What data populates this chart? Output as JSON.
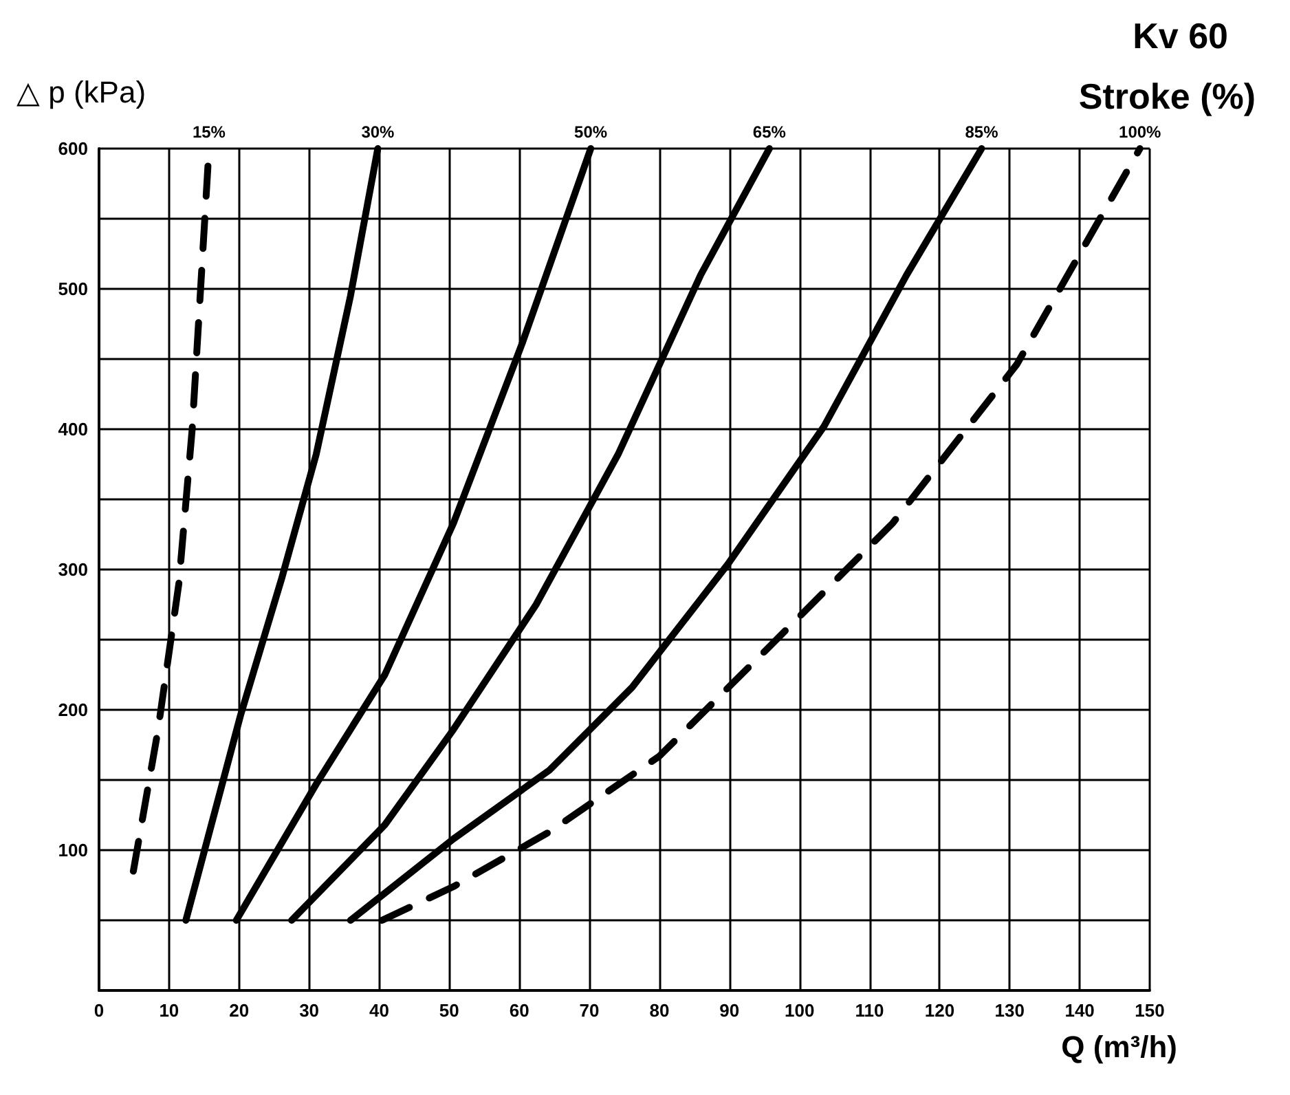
{
  "chart_data": {
    "type": "line",
    "title": "Kv 60",
    "subtitle": "Stroke (%)",
    "xlabel": "Q (m³/h)",
    "ylabel": "△ p (kPa)",
    "xlim": [
      0,
      150
    ],
    "xticks": [
      0,
      10,
      20,
      30,
      40,
      50,
      60,
      70,
      80,
      90,
      100,
      110,
      120,
      130,
      140,
      150
    ],
    "ylim": [
      0,
      600
    ],
    "yticks": [
      {
        "value": 0,
        "label": null
      },
      {
        "value": 50,
        "label": null
      },
      100,
      {
        "value": 150,
        "label": null
      },
      200,
      {
        "value": 250,
        "label": null
      },
      300,
      {
        "value": 350,
        "label": null
      },
      400,
      {
        "value": 450,
        "label": null
      },
      500,
      {
        "value": 550,
        "label": null
      },
      600
    ],
    "grid": true,
    "legend": false,
    "marker": "none",
    "series": [
      {
        "name": "15%",
        "color": "#000000",
        "line_style": "dashed",
        "x": [
          4.9,
          8.4,
          11.4,
          13.3,
          14.5,
          15.7
        ],
        "values": [
          85,
          185,
          290,
          400,
          500,
          600
        ]
      },
      {
        "name": "30%",
        "color": "#000000",
        "line_style": "solid",
        "x": [
          12.4,
          20.2,
          26.1,
          31,
          35.9,
          39.8
        ],
        "values": [
          50,
          196,
          294,
          382,
          495,
          600
        ]
      },
      {
        "name": "50%",
        "color": "#000000",
        "line_style": "solid",
        "x": [
          19.6,
          31,
          40.8,
          50.6,
          60.4,
          70.2
        ],
        "values": [
          50,
          147,
          225,
          333,
          461,
          600
        ]
      },
      {
        "name": "65%",
        "color": "#000000",
        "line_style": "solid",
        "x": [
          27.5,
          40.8,
          50.6,
          62.4,
          74.1,
          85.9,
          95.7
        ],
        "values": [
          50,
          118,
          186,
          275,
          382,
          510,
          600
        ]
      },
      {
        "name": "85%",
        "color": "#000000",
        "line_style": "solid",
        "x": [
          35.9,
          50.6,
          64.3,
          76.1,
          89.8,
          103.5,
          115.3,
          126
        ],
        "values": [
          50,
          108,
          157,
          216,
          304,
          402,
          510,
          600
        ]
      },
      {
        "name": "100%",
        "color": "#000000",
        "line_style": "dashed",
        "x": [
          40.4,
          50.6,
          64.3,
          80,
          95.7,
          113.3,
          131,
          148.6
        ],
        "values": [
          50,
          74,
          113,
          167,
          245,
          333,
          446,
          600
        ]
      }
    ]
  }
}
